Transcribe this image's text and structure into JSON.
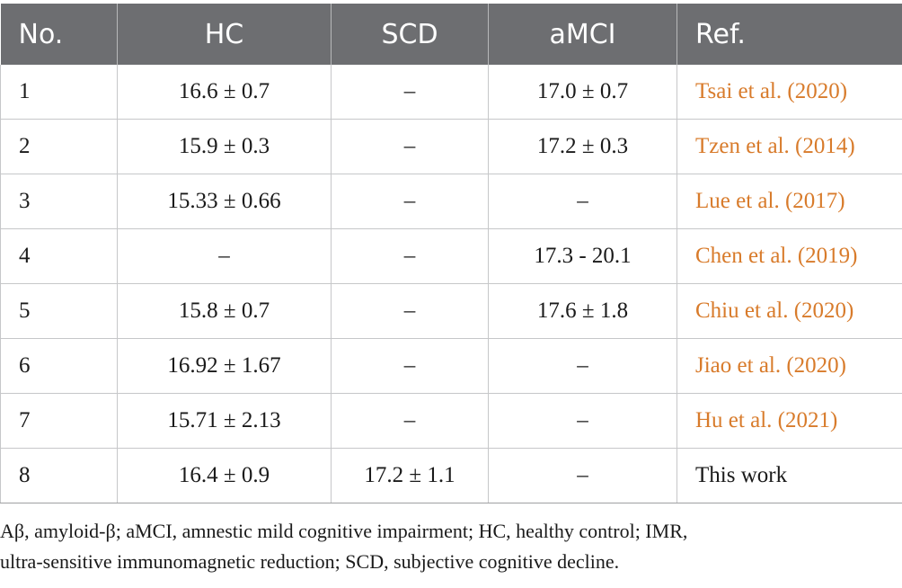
{
  "table": {
    "headers": [
      "No.",
      "HC",
      "SCD",
      "aMCI",
      "Ref."
    ],
    "rows": [
      {
        "no": "1",
        "hc": "16.6 ± 0.7",
        "scd": "–",
        "amci": "17.0 ± 0.7",
        "ref": "Tsai et al. (2020)",
        "ref_is_link": true
      },
      {
        "no": "2",
        "hc": "15.9 ± 0.3",
        "scd": "–",
        "amci": "17.2 ± 0.3",
        "ref": "Tzen et al. (2014)",
        "ref_is_link": true
      },
      {
        "no": "3",
        "hc": "15.33 ± 0.66",
        "scd": "–",
        "amci": "–",
        "ref": "Lue et al. (2017)",
        "ref_is_link": true
      },
      {
        "no": "4",
        "hc": "–",
        "scd": "–",
        "amci": "17.3 - 20.1",
        "ref": "Chen et al. (2019)",
        "ref_is_link": true
      },
      {
        "no": "5",
        "hc": "15.8 ± 0.7",
        "scd": "–",
        "amci": "17.6 ± 1.8",
        "ref": "Chiu et al. (2020)",
        "ref_is_link": true
      },
      {
        "no": "6",
        "hc": "16.92 ± 1.67",
        "scd": "–",
        "amci": "–",
        "ref": "Jiao et al. (2020)",
        "ref_is_link": true
      },
      {
        "no": "7",
        "hc": "15.71 ± 2.13",
        "scd": "–",
        "amci": "–",
        "ref": "Hu et al. (2021)",
        "ref_is_link": true
      },
      {
        "no": "8",
        "hc": "16.4 ± 0.9",
        "scd": "17.2 ± 1.1",
        "amci": "–",
        "ref": "This work",
        "ref_is_link": false
      }
    ]
  },
  "footnote": {
    "line1": "Aβ, amyloid-β; aMCI, amnestic mild cognitive impairment; HC, healthy control; IMR,",
    "line2": "ultra-sensitive immunomagnetic reduction; SCD, subjective cognitive decline."
  },
  "colors": {
    "header_bg": "#6d6e71",
    "header_text": "#ffffff",
    "link": "#d87b2b",
    "border": "#c6c7c9"
  }
}
